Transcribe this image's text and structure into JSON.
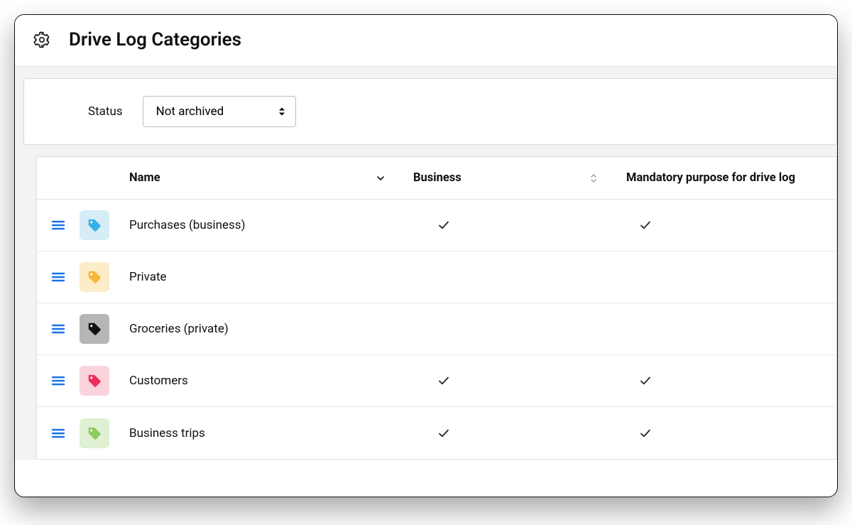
{
  "header": {
    "title": "Drive Log Categories"
  },
  "filter": {
    "label": "Status",
    "selected": "Not archived"
  },
  "columns": {
    "name": "Name",
    "business": "Business",
    "mandatory": "Mandatory purpose for drive log"
  },
  "rows": [
    {
      "name": "Purchases (business)",
      "tag_bg": "#d6ecf7",
      "tag_fg": "#36b2e6",
      "business": true,
      "mandatory": true
    },
    {
      "name": "Private",
      "tag_bg": "#fdecc8",
      "tag_fg": "#f5b63a",
      "business": false,
      "mandatory": false
    },
    {
      "name": "Groceries (private)",
      "tag_bg": "#b6b6b6",
      "tag_fg": "#111111",
      "business": false,
      "mandatory": false
    },
    {
      "name": "Customers",
      "tag_bg": "#fbd3dc",
      "tag_fg": "#ef2f5b",
      "business": true,
      "mandatory": true
    },
    {
      "name": "Business trips",
      "tag_bg": "#dff0d3",
      "tag_fg": "#8fcb5e",
      "business": true,
      "mandatory": true
    }
  ],
  "colors": {
    "drag_handle": "#1a73e8",
    "border": "#e1e1e1",
    "bg_muted": "#f3f3f3"
  }
}
